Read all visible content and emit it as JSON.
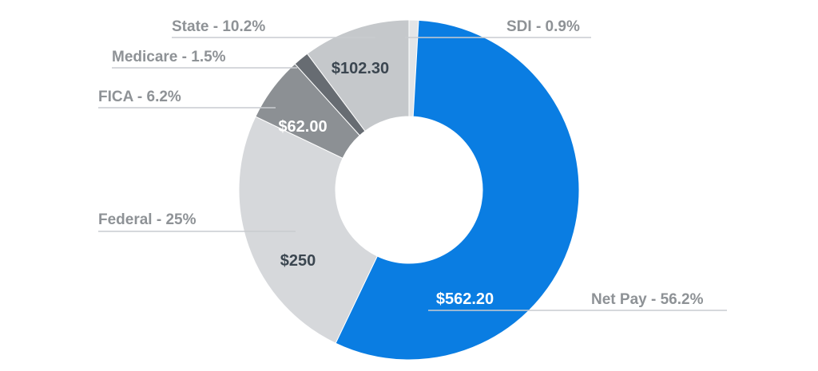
{
  "chart_data": {
    "type": "pie",
    "donut": true,
    "slices": [
      {
        "label": "SDI - 0.9%",
        "percent": 0.9,
        "value_label": "",
        "color": "#e3e5e7"
      },
      {
        "label": "Net Pay - 56.2%",
        "percent": 56.2,
        "value_label": "$562.20",
        "color": "#0a7de2",
        "value_color": "#ffffff"
      },
      {
        "label": "Federal - 25%",
        "percent": 25,
        "value_label": "$250",
        "color": "#d6d8db",
        "value_color": "#3b4650"
      },
      {
        "label": "FICA - 6.2%",
        "percent": 6.2,
        "value_label": "$62.00",
        "color": "#8c9094",
        "value_color": "#ffffff"
      },
      {
        "label": "Medicare - 1.5%",
        "percent": 1.5,
        "value_label": "",
        "color": "#676c72"
      },
      {
        "label": "State - 10.2%",
        "percent": 10.2,
        "value_label": "$102.30",
        "color": "#c5c8cb",
        "value_color": "#3b4650"
      }
    ]
  }
}
